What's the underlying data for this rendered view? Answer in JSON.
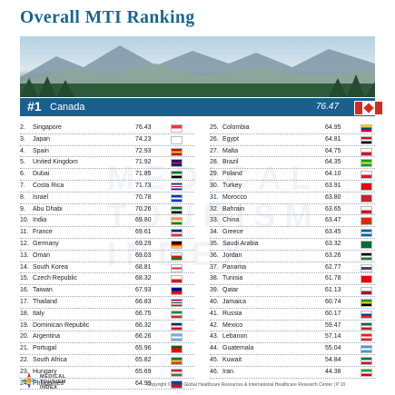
{
  "page": {
    "title": "Overall MTI Ranking",
    "footer": "Copyright © 2020 Global Healthcare Resources & International Healthcare Research Center | P 10"
  },
  "top": {
    "rank": "#1",
    "country": "Canada",
    "score": "76.47",
    "flag": [
      "#d52b1e",
      "#ffffff",
      "#d52b1e"
    ]
  },
  "watermark": {
    "lines": [
      "MEDICAL",
      "TOURISM",
      "INDEX"
    ]
  },
  "logo": {
    "lines": [
      "MEDICAL",
      "TOURISM",
      "INDEX"
    ]
  },
  "left_rows": [
    {
      "rank": "2.",
      "country": "Singapore",
      "score": "76.43",
      "flag": [
        "#ef3340",
        "#ffffff"
      ]
    },
    {
      "rank": "3.",
      "country": "Japan",
      "score": "74.23",
      "flag": [
        "#ffffff",
        "#ffffff"
      ]
    },
    {
      "rank": "4.",
      "country": "Spain",
      "score": "72.93",
      "flag": [
        "#c60b1e",
        "#ffc400",
        "#c60b1e"
      ]
    },
    {
      "rank": "5.",
      "country": "United Kingdom",
      "score": "71.92",
      "flag": [
        "#012169",
        "#c8102e",
        "#012169"
      ]
    },
    {
      "rank": "6.",
      "country": "Dubai",
      "score": "71.85",
      "flag": [
        "#00732f",
        "#ffffff",
        "#000000"
      ]
    },
    {
      "rank": "7.",
      "country": "Costa Rica",
      "score": "71.73",
      "flag": [
        "#002b7f",
        "#ffffff",
        "#ce1126",
        "#ffffff",
        "#002b7f"
      ]
    },
    {
      "rank": "8.",
      "country": "Israel",
      "score": "70.78",
      "flag": [
        "#0038b8",
        "#ffffff",
        "#0038b8"
      ]
    },
    {
      "rank": "9.",
      "country": "Abu Dhabi",
      "score": "70.26",
      "flag": [
        "#00732f",
        "#ffffff",
        "#000000"
      ]
    },
    {
      "rank": "10.",
      "country": "India",
      "score": "69.80",
      "flag": [
        "#ff9933",
        "#ffffff",
        "#138808"
      ]
    },
    {
      "rank": "11.",
      "country": "France",
      "score": "69.61",
      "flag": [
        "#002395",
        "#ffffff",
        "#ed2939"
      ]
    },
    {
      "rank": "12.",
      "country": "Germany",
      "score": "69.29",
      "flag": [
        "#000000",
        "#dd0000",
        "#ffce00"
      ]
    },
    {
      "rank": "13.",
      "country": "Oman",
      "score": "69.03",
      "flag": [
        "#ffffff",
        "#db161b",
        "#008000"
      ]
    },
    {
      "rank": "14.",
      "country": "South Korea",
      "score": "68.81",
      "flag": [
        "#ffffff",
        "#cd2e3a",
        "#ffffff"
      ]
    },
    {
      "rank": "15.",
      "country": "Czech Republic",
      "score": "68.32",
      "flag": [
        "#ffffff",
        "#d7141a"
      ]
    },
    {
      "rank": "16.",
      "country": "Taiwan",
      "score": "67.93",
      "flag": [
        "#000095",
        "#fe0000"
      ]
    },
    {
      "rank": "17.",
      "country": "Thailand",
      "score": "66.83",
      "flag": [
        "#a51931",
        "#f4f5f8",
        "#2d2a4a",
        "#f4f5f8",
        "#a51931"
      ]
    },
    {
      "rank": "18.",
      "country": "Italy",
      "score": "66.75",
      "flag": [
        "#009246",
        "#ffffff",
        "#ce2b37"
      ]
    },
    {
      "rank": "19.",
      "country": "Dominican Republic",
      "score": "66.32",
      "flag": [
        "#002d62",
        "#ffffff",
        "#ce1126"
      ]
    },
    {
      "rank": "20.",
      "country": "Argentina",
      "score": "66.26",
      "flag": [
        "#74acdf",
        "#ffffff",
        "#74acdf"
      ]
    },
    {
      "rank": "21.",
      "country": "Portugal",
      "score": "65.96",
      "flag": [
        "#006600",
        "#ff0000",
        "#ff0000"
      ]
    },
    {
      "rank": "22.",
      "country": "South Africa",
      "score": "65.82",
      "flag": [
        "#007749",
        "#ffb81c",
        "#de3831"
      ]
    },
    {
      "rank": "23.",
      "country": "Hungary",
      "score": "65.69",
      "flag": [
        "#ce2939",
        "#ffffff",
        "#477050"
      ]
    },
    {
      "rank": "24.",
      "country": "Philippines",
      "score": "64.99",
      "flag": [
        "#0038a8",
        "#ce1126"
      ]
    }
  ],
  "right_rows": [
    {
      "rank": "25.",
      "country": "Colombia",
      "score": "64.95",
      "flag": [
        "#fcd116",
        "#003893",
        "#ce1126"
      ]
    },
    {
      "rank": "26.",
      "country": "Egypt",
      "score": "64.81",
      "flag": [
        "#ce1126",
        "#ffffff",
        "#000000"
      ]
    },
    {
      "rank": "27.",
      "country": "Malta",
      "score": "64.75",
      "flag": [
        "#ffffff",
        "#cf142b"
      ]
    },
    {
      "rank": "28.",
      "country": "Brazil",
      "score": "64.35",
      "flag": [
        "#009c3b",
        "#ffdf00",
        "#009c3b"
      ]
    },
    {
      "rank": "29.",
      "country": "Poland",
      "score": "64.10",
      "flag": [
        "#ffffff",
        "#dc143c"
      ]
    },
    {
      "rank": "30.",
      "country": "Turkey",
      "score": "63.91",
      "flag": [
        "#e30a17",
        "#e30a17"
      ]
    },
    {
      "rank": "31.",
      "country": "Morocco",
      "score": "63.80",
      "flag": [
        "#c1272d",
        "#c1272d"
      ]
    },
    {
      "rank": "32.",
      "country": "Bahrain",
      "score": "63.65",
      "flag": [
        "#ffffff",
        "#ce1126"
      ]
    },
    {
      "rank": "33.",
      "country": "China",
      "score": "63.47",
      "flag": [
        "#de2910",
        "#de2910"
      ]
    },
    {
      "rank": "34.",
      "country": "Greece",
      "score": "63.45",
      "flag": [
        "#0d5eaf",
        "#ffffff",
        "#0d5eaf"
      ]
    },
    {
      "rank": "35.",
      "country": "Saudi Arabia",
      "score": "63.32",
      "flag": [
        "#006c35",
        "#006c35"
      ]
    },
    {
      "rank": "36.",
      "country": "Jordan",
      "score": "63.26",
      "flag": [
        "#000000",
        "#ffffff",
        "#007a3d"
      ]
    },
    {
      "rank": "37.",
      "country": "Panama",
      "score": "62.77",
      "flag": [
        "#ffffff",
        "#d21034",
        "#005293",
        "#ffffff"
      ]
    },
    {
      "rank": "38.",
      "country": "Tunisia",
      "score": "61.78",
      "flag": [
        "#e70013",
        "#e70013"
      ]
    },
    {
      "rank": "39.",
      "country": "Qatar",
      "score": "61.13",
      "flag": [
        "#ffffff",
        "#8d1b3d"
      ]
    },
    {
      "rank": "40.",
      "country": "Jamaica",
      "score": "60.74",
      "flag": [
        "#009b3a",
        "#fed100",
        "#000000"
      ]
    },
    {
      "rank": "41.",
      "country": "Russia",
      "score": "60.17",
      "flag": [
        "#ffffff",
        "#0039a6",
        "#d52b1e"
      ]
    },
    {
      "rank": "42.",
      "country": "Mexico",
      "score": "59.47",
      "flag": [
        "#006847",
        "#ffffff",
        "#ce1126"
      ]
    },
    {
      "rank": "43.",
      "country": "Lebanon",
      "score": "57.14",
      "flag": [
        "#ed1c24",
        "#ffffff",
        "#ed1c24"
      ]
    },
    {
      "rank": "44.",
      "country": "Guatemala",
      "score": "55.04",
      "flag": [
        "#4997d0",
        "#ffffff",
        "#4997d0"
      ]
    },
    {
      "rank": "45.",
      "country": "Kuwait",
      "score": "54.84",
      "flag": [
        "#007a3d",
        "#ffffff",
        "#ce1126"
      ]
    },
    {
      "rank": "46.",
      "country": "Iran",
      "score": "44.38",
      "flag": [
        "#239f40",
        "#ffffff",
        "#da0000"
      ]
    }
  ]
}
